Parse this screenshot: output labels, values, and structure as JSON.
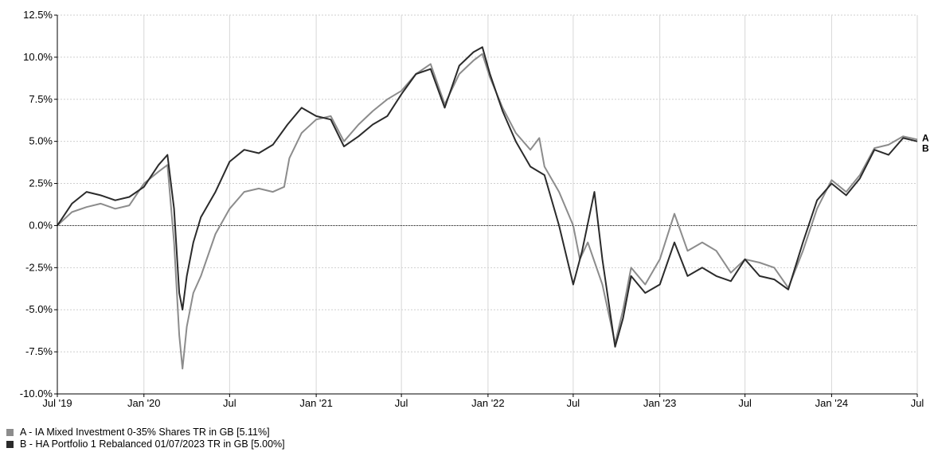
{
  "chart_data": {
    "type": "line",
    "ylim": [
      -10,
      12.5
    ],
    "y_ticks": [
      "12.5%",
      "10.0%",
      "7.5%",
      "5.0%",
      "2.5%",
      "0.0%",
      "-2.5%",
      "-5.0%",
      "-7.5%",
      "-10.0%"
    ],
    "y_tick_values": [
      12.5,
      10,
      7.5,
      5,
      2.5,
      0,
      -2.5,
      -5,
      -7.5,
      -10
    ],
    "x_range": [
      "2019-07-01",
      "2024-07-01"
    ],
    "x_ticks": [
      {
        "label": "Jul '19",
        "date": "2019-07-01"
      },
      {
        "label": "Jan '20",
        "date": "2020-01-01"
      },
      {
        "label": "Jul",
        "date": "2020-07-01"
      },
      {
        "label": "Jan '21",
        "date": "2021-01-01"
      },
      {
        "label": "Jul",
        "date": "2021-07-01"
      },
      {
        "label": "Jan '22",
        "date": "2022-01-01"
      },
      {
        "label": "Jul",
        "date": "2022-07-01"
      },
      {
        "label": "Jan '23",
        "date": "2023-01-01"
      },
      {
        "label": "Jul",
        "date": "2023-07-01"
      },
      {
        "label": "Jan '24",
        "date": "2024-01-01"
      },
      {
        "label": "Jul",
        "date": "2024-07-01"
      }
    ],
    "grid": true,
    "legend_position": "bottom-left",
    "series": [
      {
        "name": "A - IA Mixed Investment 0-35% Shares TR in GB [5.11%]",
        "end_label": "A",
        "color": "#8c8c8c",
        "points": [
          [
            "2019-07-01",
            0.0
          ],
          [
            "2019-08-01",
            0.8
          ],
          [
            "2019-09-01",
            1.1
          ],
          [
            "2019-10-01",
            1.3
          ],
          [
            "2019-11-01",
            1.0
          ],
          [
            "2019-12-01",
            1.2
          ],
          [
            "2020-01-01",
            2.5
          ],
          [
            "2020-02-01",
            3.2
          ],
          [
            "2020-02-20",
            3.6
          ],
          [
            "2020-03-05",
            -1.0
          ],
          [
            "2020-03-16",
            -6.5
          ],
          [
            "2020-03-23",
            -8.5
          ],
          [
            "2020-04-01",
            -6.0
          ],
          [
            "2020-04-15",
            -4.0
          ],
          [
            "2020-05-01",
            -3.0
          ],
          [
            "2020-06-01",
            -0.5
          ],
          [
            "2020-07-01",
            1.0
          ],
          [
            "2020-08-01",
            2.0
          ],
          [
            "2020-09-01",
            2.2
          ],
          [
            "2020-10-01",
            2.0
          ],
          [
            "2020-10-25",
            2.3
          ],
          [
            "2020-11-05",
            4.0
          ],
          [
            "2020-12-01",
            5.5
          ],
          [
            "2021-01-01",
            6.3
          ],
          [
            "2021-02-01",
            6.5
          ],
          [
            "2021-03-01",
            5.0
          ],
          [
            "2021-04-01",
            6.0
          ],
          [
            "2021-05-01",
            6.8
          ],
          [
            "2021-06-01",
            7.5
          ],
          [
            "2021-07-01",
            8.0
          ],
          [
            "2021-08-01",
            9.0
          ],
          [
            "2021-09-01",
            9.6
          ],
          [
            "2021-10-01",
            7.2
          ],
          [
            "2021-11-01",
            9.0
          ],
          [
            "2021-12-01",
            9.8
          ],
          [
            "2021-12-20",
            10.2
          ],
          [
            "2022-01-05",
            8.8
          ],
          [
            "2022-02-01",
            7.0
          ],
          [
            "2022-03-01",
            5.5
          ],
          [
            "2022-04-01",
            4.5
          ],
          [
            "2022-04-20",
            5.2
          ],
          [
            "2022-05-01",
            3.5
          ],
          [
            "2022-06-01",
            2.0
          ],
          [
            "2022-07-01",
            0.0
          ],
          [
            "2022-07-15",
            -2.0
          ],
          [
            "2022-08-01",
            -1.0
          ],
          [
            "2022-09-01",
            -3.5
          ],
          [
            "2022-09-28",
            -7.0
          ],
          [
            "2022-10-15",
            -5.0
          ],
          [
            "2022-11-01",
            -2.5
          ],
          [
            "2022-12-01",
            -3.5
          ],
          [
            "2023-01-01",
            -2.0
          ],
          [
            "2023-02-01",
            0.7
          ],
          [
            "2023-03-01",
            -1.5
          ],
          [
            "2023-04-01",
            -1.0
          ],
          [
            "2023-05-01",
            -1.5
          ],
          [
            "2023-06-01",
            -2.8
          ],
          [
            "2023-07-01",
            -2.0
          ],
          [
            "2023-08-01",
            -2.2
          ],
          [
            "2023-09-01",
            -2.5
          ],
          [
            "2023-10-01",
            -3.7
          ],
          [
            "2023-11-01",
            -1.5
          ],
          [
            "2023-12-01",
            1.0
          ],
          [
            "2024-01-01",
            2.7
          ],
          [
            "2024-02-01",
            2.0
          ],
          [
            "2024-03-01",
            3.0
          ],
          [
            "2024-04-01",
            4.6
          ],
          [
            "2024-05-01",
            4.8
          ],
          [
            "2024-06-01",
            5.3
          ],
          [
            "2024-07-01",
            5.11
          ]
        ]
      },
      {
        "name": "B - HA Portfolio 1 Rebalanced 01/07/2023 TR in GB [5.00%]",
        "end_label": "B",
        "color": "#2b2b2b",
        "points": [
          [
            "2019-07-01",
            0.0
          ],
          [
            "2019-08-01",
            1.3
          ],
          [
            "2019-09-01",
            2.0
          ],
          [
            "2019-10-01",
            1.8
          ],
          [
            "2019-11-01",
            1.5
          ],
          [
            "2019-12-01",
            1.7
          ],
          [
            "2020-01-01",
            2.3
          ],
          [
            "2020-02-01",
            3.6
          ],
          [
            "2020-02-20",
            4.2
          ],
          [
            "2020-03-05",
            1.0
          ],
          [
            "2020-03-16",
            -4.0
          ],
          [
            "2020-03-23",
            -5.0
          ],
          [
            "2020-04-01",
            -3.0
          ],
          [
            "2020-04-15",
            -1.0
          ],
          [
            "2020-05-01",
            0.5
          ],
          [
            "2020-06-01",
            2.0
          ],
          [
            "2020-07-01",
            3.8
          ],
          [
            "2020-08-01",
            4.5
          ],
          [
            "2020-09-01",
            4.3
          ],
          [
            "2020-10-01",
            4.8
          ],
          [
            "2020-11-01",
            6.0
          ],
          [
            "2020-12-01",
            7.0
          ],
          [
            "2021-01-01",
            6.5
          ],
          [
            "2021-02-01",
            6.3
          ],
          [
            "2021-03-01",
            4.7
          ],
          [
            "2021-04-01",
            5.3
          ],
          [
            "2021-05-01",
            6.0
          ],
          [
            "2021-06-01",
            6.5
          ],
          [
            "2021-07-01",
            7.8
          ],
          [
            "2021-08-01",
            9.0
          ],
          [
            "2021-09-01",
            9.3
          ],
          [
            "2021-10-01",
            7.0
          ],
          [
            "2021-11-01",
            9.5
          ],
          [
            "2021-12-01",
            10.3
          ],
          [
            "2021-12-20",
            10.6
          ],
          [
            "2022-01-05",
            9.0
          ],
          [
            "2022-02-01",
            6.8
          ],
          [
            "2022-03-01",
            5.0
          ],
          [
            "2022-04-01",
            3.5
          ],
          [
            "2022-05-01",
            3.0
          ],
          [
            "2022-06-01",
            0.0
          ],
          [
            "2022-07-01",
            -3.5
          ],
          [
            "2022-07-20",
            -1.5
          ],
          [
            "2022-08-15",
            2.0
          ],
          [
            "2022-09-01",
            -2.0
          ],
          [
            "2022-09-28",
            -7.2
          ],
          [
            "2022-10-15",
            -5.5
          ],
          [
            "2022-11-01",
            -3.0
          ],
          [
            "2022-12-01",
            -4.0
          ],
          [
            "2023-01-01",
            -3.5
          ],
          [
            "2023-02-01",
            -1.0
          ],
          [
            "2023-03-01",
            -3.0
          ],
          [
            "2023-04-01",
            -2.5
          ],
          [
            "2023-05-01",
            -3.0
          ],
          [
            "2023-06-01",
            -3.3
          ],
          [
            "2023-07-01",
            -2.0
          ],
          [
            "2023-08-01",
            -3.0
          ],
          [
            "2023-09-01",
            -3.2
          ],
          [
            "2023-10-01",
            -3.8
          ],
          [
            "2023-11-01",
            -1.0
          ],
          [
            "2023-12-01",
            1.5
          ],
          [
            "2024-01-01",
            2.5
          ],
          [
            "2024-02-01",
            1.8
          ],
          [
            "2024-03-01",
            2.8
          ],
          [
            "2024-04-01",
            4.5
          ],
          [
            "2024-05-01",
            4.2
          ],
          [
            "2024-06-01",
            5.2
          ],
          [
            "2024-07-01",
            5.0
          ]
        ]
      }
    ]
  }
}
